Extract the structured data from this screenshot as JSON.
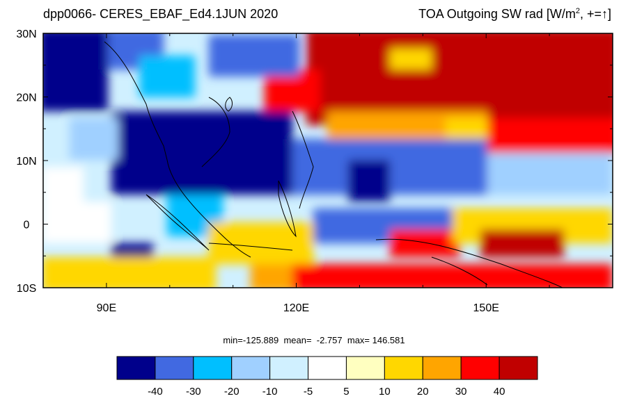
{
  "header": {
    "title_left": "dpp0066- CERES_EBAF_Ed4.1JUN 2020",
    "title_right_main": "TOA Outgoing SW rad [W/m",
    "title_right_sup": "2",
    "title_right_tail": ", +=↑]"
  },
  "axes": {
    "lat_labels": [
      "30N",
      "20N",
      "10N",
      "0",
      "10S"
    ],
    "lat_values": [
      30,
      20,
      10,
      0,
      -10
    ],
    "lon_labels": [
      "90E",
      "120E",
      "150E"
    ],
    "lon_values": [
      90,
      120,
      150
    ],
    "lon_range": [
      80,
      170
    ],
    "lat_range": [
      -10,
      30
    ]
  },
  "stats": {
    "text": "min=-125.889  mean=  -2.757  max= 146.581"
  },
  "colorbar": {
    "labels": [
      "-40",
      "-30",
      "-20",
      "-10",
      "-5",
      "5",
      "10",
      "20",
      "30",
      "40"
    ],
    "colors": [
      "#00008b",
      "#4169e1",
      "#00bfff",
      "#a0d0ff",
      "#d0f0ff",
      "#ffffff",
      "#ffffc0",
      "#ffd700",
      "#ffa500",
      "#ff0000",
      "#c00000"
    ]
  }
}
